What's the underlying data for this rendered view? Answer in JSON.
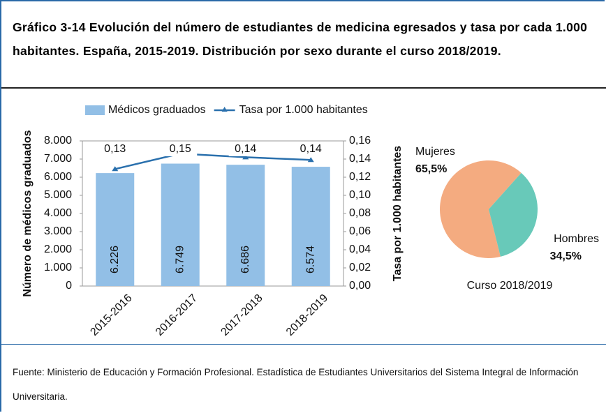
{
  "title": "Gráfico 3-14 Evolución del número de estudiantes de medicina egresados y tasa por cada 1.000 habitantes. España, 2015-2019. Distribución por sexo durante el curso 2018/2019.",
  "chart_data": [
    {
      "type": "bar",
      "categories": [
        "2015-2016",
        "2016-2017",
        "2017-2018",
        "2018-2019"
      ],
      "series": [
        {
          "name": "Médicos graduados",
          "color": "#92bfe6",
          "values": [
            6226,
            6749,
            6686,
            6574
          ],
          "value_labels": [
            "6.226",
            "6.749",
            "6.686",
            "6.574"
          ]
        },
        {
          "name": "Tasa por 1.000 habitantes",
          "type": "line",
          "axis": "y2",
          "color": "#2a70ad",
          "values": [
            0.129,
            0.146,
            0.142,
            0.139
          ],
          "value_labels": [
            "0,13",
            "0,15",
            "0,14",
            "0,14"
          ]
        }
      ],
      "ylabel": "Número de médicos graduados",
      "y2label": "Tasa por 1.000 habitantes",
      "ylim": [
        0,
        8000
      ],
      "yticks": [
        0,
        {
          "value": 1000,
          "label": "1.000"
        },
        {
          "value": 2000,
          "label": "2.000"
        },
        {
          "value": 3000,
          "label": "3.000"
        },
        {
          "value": 4000,
          "label": "4.000"
        },
        {
          "value": 5000,
          "label": "5.000"
        },
        {
          "value": 6000,
          "label": "6.000"
        },
        {
          "value": 7000,
          "label": "7.000"
        },
        {
          "value": 8000,
          "label": "8.000"
        }
      ],
      "y2lim": [
        0,
        0.16
      ],
      "y2ticks": [
        {
          "value": 0,
          "label": "0,00"
        },
        {
          "value": 0.02,
          "label": "0,02"
        },
        {
          "value": 0.04,
          "label": "0,04"
        },
        {
          "value": 0.06,
          "label": "0,06"
        },
        {
          "value": 0.08,
          "label": "0,08"
        },
        {
          "value": 0.1,
          "label": "0,10"
        },
        {
          "value": 0.12,
          "label": "0,12"
        },
        {
          "value": 0.14,
          "label": "0,14"
        },
        {
          "value": 0.16,
          "label": "0,16"
        }
      ]
    },
    {
      "type": "pie",
      "title": "Curso 2018/2019",
      "categories": [
        "Mujeres",
        "Hombres"
      ],
      "values": [
        65.5,
        34.5
      ],
      "value_labels": [
        "65,5%",
        "34,5%"
      ],
      "colors": [
        "#f4ab80",
        "#68c9b9"
      ]
    }
  ],
  "source": "Fuente: Ministerio de Educación y Formación Profesional. Estadística de Estudiantes Universitarios del Sistema Integral de Información Universitaria."
}
